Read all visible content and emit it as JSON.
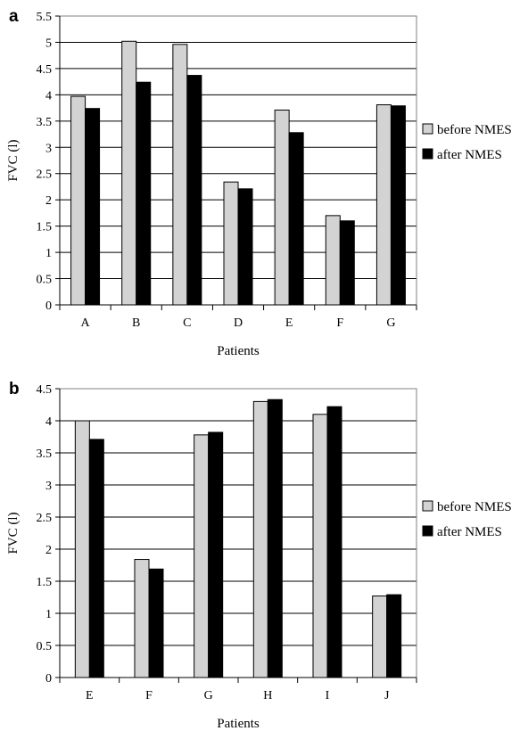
{
  "chart_data": [
    {
      "panel_label": "a",
      "type": "bar",
      "categories": [
        "A",
        "B",
        "C",
        "D",
        "E",
        "F",
        "G"
      ],
      "series": [
        {
          "name": "before NMES",
          "values": [
            3.97,
            5.02,
            4.96,
            2.34,
            3.71,
            1.7,
            3.81
          ]
        },
        {
          "name": "after NMES",
          "values": [
            3.74,
            4.24,
            4.37,
            2.21,
            3.28,
            1.6,
            3.79
          ]
        }
      ],
      "xlabel": "Patients",
      "ylabel": "FVC (l)",
      "ylim": [
        0,
        5.5
      ],
      "yticks": [
        "0",
        "0.5",
        "1",
        "1.5",
        "2",
        "2.5",
        "3",
        "3.5",
        "4",
        "4.5",
        "5",
        "5.5"
      ],
      "grid": "horizontal",
      "legend": "right",
      "colors": [
        "#d3d3d3",
        "#000000"
      ]
    },
    {
      "panel_label": "b",
      "type": "bar",
      "categories": [
        "E",
        "F",
        "G",
        "H",
        "I",
        "J"
      ],
      "series": [
        {
          "name": "before NMES",
          "values": [
            4.0,
            1.84,
            3.78,
            4.3,
            4.1,
            1.27
          ]
        },
        {
          "name": "after NMES",
          "values": [
            3.71,
            1.69,
            3.82,
            4.33,
            4.22,
            1.29
          ]
        }
      ],
      "xlabel": "Patients",
      "ylabel": "FVC (l)",
      "ylim": [
        0,
        4.5
      ],
      "yticks": [
        "0",
        "0.5",
        "1",
        "1.5",
        "2",
        "2.5",
        "3",
        "3.5",
        "4",
        "4.5"
      ],
      "grid": "horizontal",
      "legend": "right",
      "colors": [
        "#d3d3d3",
        "#000000"
      ]
    }
  ]
}
